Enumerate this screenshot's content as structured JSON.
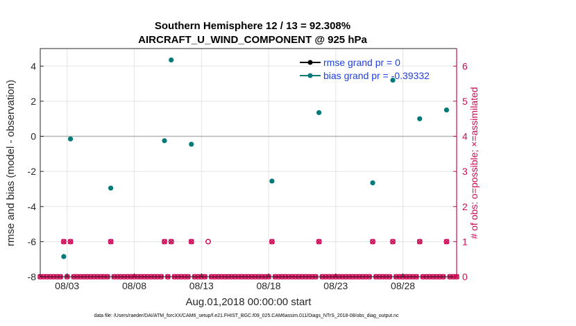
{
  "chart_data": {
    "type": "scatter",
    "title": "Southern Hemisphere 12 / 13 = 92.308%",
    "subtitle": "AIRCRAFT_U_WIND_COMPONENT @ 925 hPa",
    "ylabel": "rmse and bias (model - observation)",
    "y2label": "# of obs: o=possible; ×=assimilated",
    "xlabel": "Aug.01,2018 00:00:00 start",
    "footnote": "data file: /Users/raeder/DAI/ATM_forcXX/CAM6_setup/f.e21.FHIST_BGC.f09_025.CAM6assim.011/Diags_NTrS_2018-08/obs_diag_output.nc",
    "x_tick_labels": [
      "08/03",
      "08/08",
      "08/13",
      "08/18",
      "08/23",
      "08/28"
    ],
    "x_tick_values": [
      3,
      8,
      13,
      18,
      23,
      28
    ],
    "xlim": [
      1,
      32
    ],
    "ylim": [
      -8,
      5
    ],
    "y_ticks": [
      "-8",
      "-6",
      "-4",
      "-2",
      "0",
      "2",
      "4"
    ],
    "y2lim": [
      0,
      6.5
    ],
    "y2_ticks": [
      "0",
      "1",
      "2",
      "3",
      "4",
      "5",
      "6"
    ],
    "grid": true,
    "legend_position": "top-right",
    "colors": {
      "rmse": "#000000",
      "bias": "#007a78",
      "obs": "#cc0a55",
      "zero_line": "#b3b3b3",
      "legend_text": "#1f3fe0"
    },
    "series": [
      {
        "name": "rmse grand pr = 0",
        "values": []
      },
      {
        "name": "bias grand pr = -0.39332",
        "x": [
          2.75,
          3.25,
          6.25,
          10.25,
          10.75,
          12.25,
          18.25,
          21.75,
          25.75,
          27.25,
          29.25,
          31.25
        ],
        "y": [
          -6.85,
          -0.15,
          -2.95,
          -0.25,
          4.35,
          -0.45,
          -2.55,
          1.35,
          -2.65,
          3.2,
          1.0,
          1.5
        ]
      }
    ],
    "obs_possible": {
      "x": [
        2.75,
        3.25,
        6.25,
        10.25,
        10.75,
        12.25,
        13.5,
        18.25,
        21.75,
        25.75,
        27.25,
        29.25,
        31.25
      ],
      "y": [
        1,
        1,
        1,
        1,
        1,
        1,
        1,
        1,
        1,
        1,
        1,
        1,
        1
      ]
    },
    "obs_assimilated": {
      "x": [
        2.75,
        3.25,
        6.25,
        10.25,
        10.75,
        12.25,
        18.25,
        21.75,
        25.75,
        27.25,
        29.25,
        31.25
      ],
      "y": [
        1,
        1,
        1,
        1,
        1,
        1,
        1,
        1,
        1,
        1,
        1,
        1
      ]
    }
  }
}
